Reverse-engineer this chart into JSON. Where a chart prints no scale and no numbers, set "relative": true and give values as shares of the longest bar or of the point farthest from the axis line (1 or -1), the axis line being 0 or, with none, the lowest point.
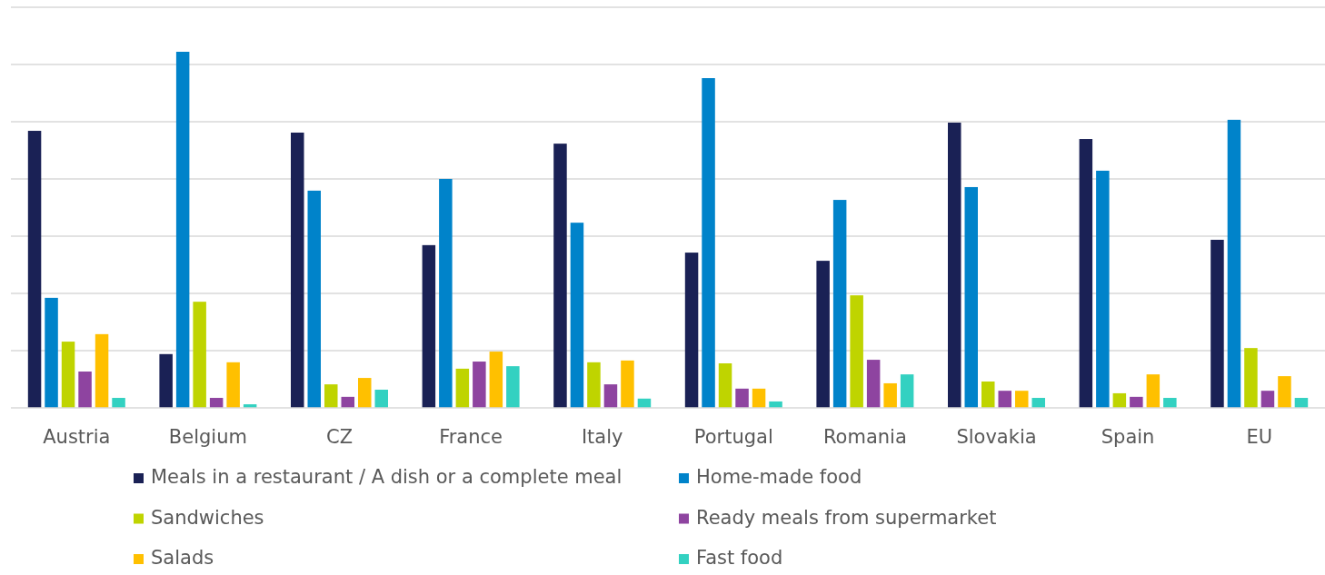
{
  "chart_data": {
    "type": "bar",
    "relative": true,
    "grid": true,
    "legend": "bottom",
    "categories": [
      "Austria",
      "Belgium",
      "CZ",
      "France",
      "Italy",
      "Portugal",
      "Romania",
      "Slovakia",
      "Spain",
      "EU"
    ],
    "series": [
      {
        "name": "Meals in a restaurant / A dish or a complete meal",
        "color": "#1a2155",
        "values": [
          0.778,
          0.151,
          0.773,
          0.457,
          0.742,
          0.436,
          0.413,
          0.801,
          0.755,
          0.472
        ]
      },
      {
        "name": "Home-made food",
        "color": "#0083ca",
        "values": [
          0.309,
          1,
          0.61,
          0.643,
          0.52,
          0.926,
          0.584,
          0.62,
          0.666,
          0.809
        ]
      },
      {
        "name": "Sandwiches",
        "color": "#bfd400",
        "values": [
          0.186,
          0.298,
          0.066,
          0.11,
          0.128,
          0.125,
          0.316,
          0.074,
          0.041,
          0.168
        ]
      },
      {
        "name": "Ready meals from supermarket",
        "color": "#8e44a0",
        "values": [
          0.102,
          0.028,
          0.031,
          0.13,
          0.066,
          0.054,
          0.135,
          0.048,
          0.031,
          0.048
        ]
      },
      {
        "name": "Salads",
        "color": "#ffc000",
        "values": [
          0.207,
          0.128,
          0.084,
          0.158,
          0.133,
          0.054,
          0.069,
          0.048,
          0.094,
          0.089
        ]
      },
      {
        "name": "Fast food",
        "color": "#33d1c1",
        "values": [
          0.028,
          0.01,
          0.051,
          0.117,
          0.026,
          0.018,
          0.094,
          0.028,
          0.028,
          0.028
        ]
      }
    ]
  }
}
